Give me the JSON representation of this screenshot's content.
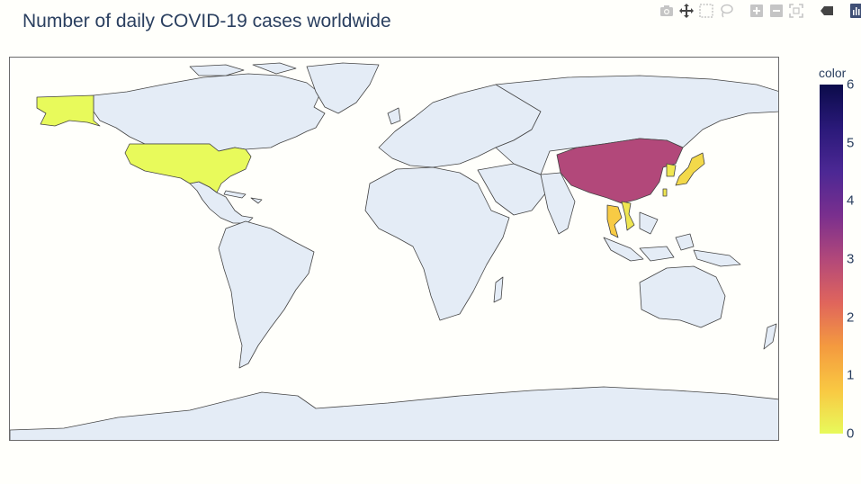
{
  "title": "Number of daily COVID-19 cases worldwide",
  "colorbar": {
    "title": "color",
    "ticks": [
      "0",
      "1",
      "2",
      "3",
      "4",
      "5",
      "6"
    ],
    "range": [
      0,
      6
    ],
    "colorscale": [
      "#e8fa5b",
      "#f9c842",
      "#f49a3f",
      "#e0655c",
      "#b2487a",
      "#7a2f8e",
      "#4c2894",
      "#2a1979",
      "#0b0b4a"
    ]
  },
  "chart_data": {
    "type": "choropleth",
    "locations": [
      "United States",
      "Alaska",
      "China",
      "Japan",
      "South Korea",
      "Thailand",
      "Vietnam",
      "Taiwan"
    ],
    "values": [
      0,
      0,
      3,
      0.5,
      0.3,
      0.7,
      0.3,
      0.3
    ],
    "range": [
      0,
      6
    ]
  },
  "colors": {
    "land": "#e4ecf6",
    "ocean": "#fffffb",
    "coastline": "#444444"
  },
  "modebar": [
    "camera-icon",
    "pan-icon",
    "box-select-icon",
    "lasso-icon",
    "zoom-in-icon",
    "zoom-out-icon",
    "reset-icon",
    "hover-icon",
    "plotly-logo-icon"
  ]
}
